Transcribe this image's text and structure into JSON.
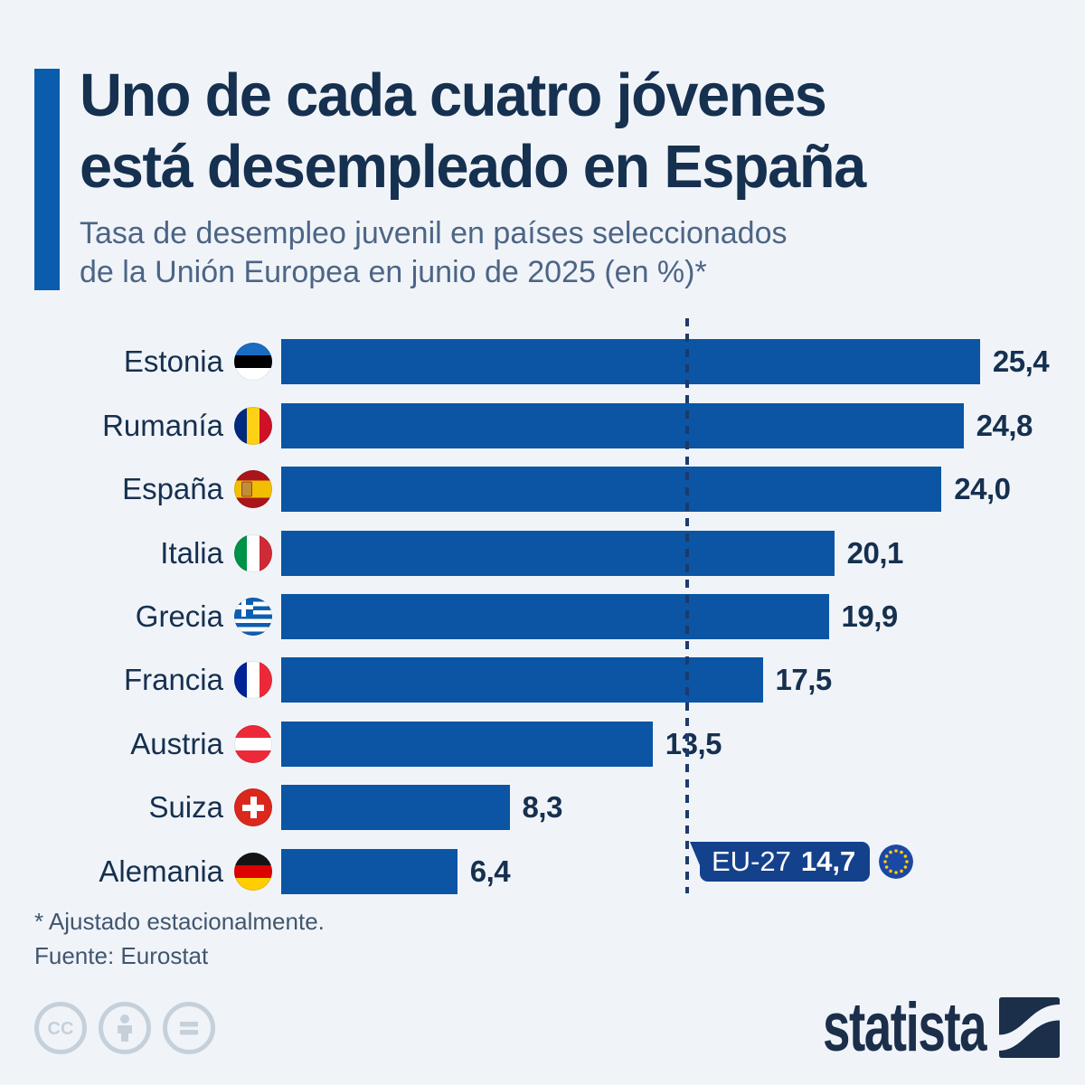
{
  "header": {
    "title_line1": "Uno de cada cuatro jóvenes",
    "title_line2": "está desempleado en España",
    "subtitle_line1": "Tasa de desempleo juvenil en países seleccionados",
    "subtitle_line2": "de la Unión Europea en junio de 2025 (en %)*"
  },
  "chart_data": {
    "type": "bar",
    "orientation": "horizontal",
    "unit": "%",
    "title": "Uno de cada cuatro jóvenes está desempleado en España",
    "subtitle": "Tasa de desempleo juvenil en países seleccionados de la Unión Europea en junio de 2025 (en %)*",
    "categories": [
      "Estonia",
      "Rumanía",
      "España",
      "Italia",
      "Grecia",
      "Francia",
      "Austria",
      "Suiza",
      "Alemania"
    ],
    "values": [
      25.4,
      24.8,
      24.0,
      20.1,
      19.9,
      17.5,
      13.5,
      8.3,
      6.4
    ],
    "value_labels": [
      "25,4",
      "24,8",
      "24,0",
      "20,1",
      "19,9",
      "17,5",
      "13,5",
      "8,3",
      "6,4"
    ],
    "flags": [
      "estonia",
      "rumania",
      "espana",
      "italia",
      "grecia",
      "francia",
      "austria",
      "suiza",
      "alemania"
    ],
    "reference_line": {
      "label": "EU-27",
      "value": 14.7,
      "value_label": "14,7",
      "flag": "eu-flag"
    },
    "xlim": [
      0,
      28
    ],
    "grid": false,
    "legend": false,
    "bar_color": "#0b55a4",
    "reference_line_color": "#1c3a6d"
  },
  "footer": {
    "footnote": "* Ajustado estacionalmente.",
    "source": "Fuente: Eurostat",
    "license_icons": [
      "cc-icon",
      "attribution-person-icon",
      "equals-icon"
    ],
    "brand": "statista"
  },
  "colors": {
    "background": "#f0f4f9",
    "accent_bar": "#0b5cad",
    "title": "#16304f",
    "subtitle": "#4d6585",
    "value_label": "#16304f",
    "footnote": "#41566f",
    "badge_background": "#14418c",
    "badge_text": "#ffffff",
    "eu_flag_blue": "#1c48a5",
    "eu_flag_star": "#ffcc00",
    "license_icon": "#c6d0da",
    "brand_navy": "#1b2e4a"
  }
}
